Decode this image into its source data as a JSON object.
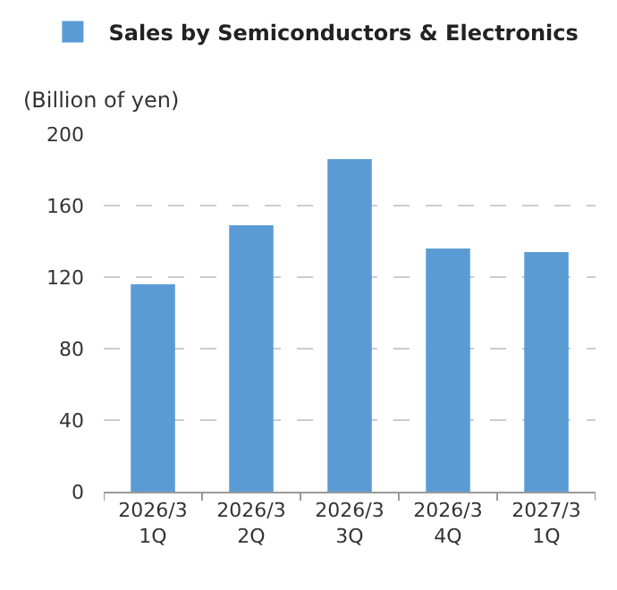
{
  "chart_data": {
    "type": "bar",
    "ylabel": "(Billion of yen)",
    "categories": [
      "2026/3\n1Q",
      "2026/3\n2Q",
      "2026/3\n3Q",
      "2026/3\n4Q",
      "2027/3\n1Q"
    ],
    "series": [
      {
        "name": "Sales by Semiconductors & Electronics",
        "color": "#5b9bd5",
        "values": [
          116,
          149,
          186,
          136,
          134
        ]
      }
    ],
    "ylim": [
      0,
      200
    ],
    "yticks": [
      0,
      40,
      80,
      120,
      160,
      200
    ],
    "grid": "y",
    "legend": "top"
  }
}
